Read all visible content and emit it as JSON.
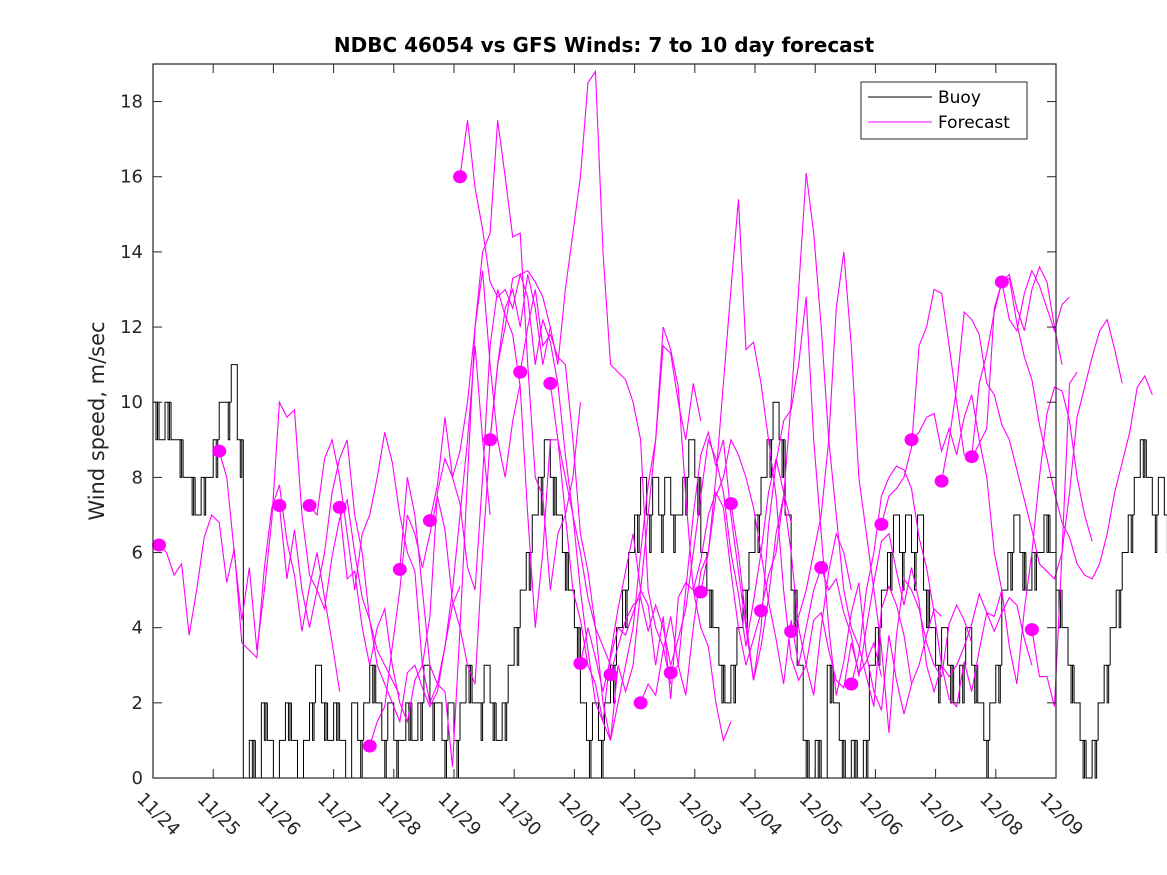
{
  "chart_data": {
    "type": "line",
    "title": "NDBC 46054 vs GFS Winds: 7 to 10 day forecast",
    "xlabel": "",
    "ylabel": "Wind speed, m/sec",
    "xlim_days": [
      0,
      15
    ],
    "ylim": [
      0,
      19
    ],
    "x_ticks": [
      "11/24",
      "11/25",
      "11/26",
      "11/27",
      "11/28",
      "11/29",
      "11/30",
      "12/01",
      "12/02",
      "12/03",
      "12/04",
      "12/05",
      "12/06",
      "12/07",
      "12/08",
      "12/09"
    ],
    "y_ticks": [
      0,
      2,
      4,
      6,
      8,
      10,
      12,
      14,
      16,
      18
    ],
    "x_units": "days since 11/24",
    "grid": false,
    "legend": {
      "position": "top-right",
      "entries": [
        {
          "label": "Buoy",
          "color": "#000000"
        },
        {
          "label": "Forecast",
          "color": "#ff00ff"
        }
      ]
    },
    "colors": {
      "buoy": "#000000",
      "forecast": "#ff00ff",
      "axis": "#262626"
    },
    "buoy": {
      "name": "Buoy",
      "step_days": 0.1,
      "values": [
        10,
        9,
        10,
        9,
        9,
        8,
        8,
        7,
        8,
        8,
        9,
        10,
        10,
        11,
        9,
        0,
        1,
        0,
        2,
        1,
        0,
        1,
        2,
        1,
        0,
        1,
        2,
        3,
        2,
        1,
        2,
        1,
        0,
        2,
        1,
        2,
        3,
        2,
        1,
        2,
        1,
        1,
        2,
        1,
        2,
        3,
        2,
        2,
        1,
        2,
        1,
        2,
        3,
        2,
        2,
        3,
        2,
        1,
        2,
        3,
        4,
        5,
        6,
        7,
        8,
        9,
        8,
        7,
        6,
        5,
        4,
        2,
        1,
        2,
        1,
        2,
        3,
        4,
        5,
        6,
        7,
        8,
        7,
        8,
        7,
        8,
        7,
        7,
        8,
        9,
        8,
        6,
        5,
        4,
        3,
        2,
        3,
        4,
        5,
        6,
        7,
        8,
        9,
        10,
        9,
        7,
        5,
        3,
        1,
        0,
        1,
        0,
        3,
        2,
        1,
        0,
        1,
        0,
        1,
        3,
        4,
        5,
        6,
        7,
        6,
        7,
        6,
        7,
        5,
        4,
        3,
        4,
        3,
        2,
        3,
        4,
        3,
        2,
        1,
        2,
        3,
        5,
        6,
        7,
        6,
        5,
        6,
        6,
        7,
        6,
        5,
        4,
        3,
        2,
        1,
        0,
        1,
        2,
        3,
        4,
        5,
        6,
        7,
        8,
        9,
        8,
        7,
        8,
        7,
        8,
        7,
        7,
        5,
        3,
        2,
        1,
        2,
        1,
        0,
        1,
        2,
        3,
        4,
        5,
        6,
        7,
        6,
        5,
        3,
        2,
        3,
        4,
        5,
        6,
        7,
        6,
        5,
        3,
        2,
        3
      ],
      "start_day": 0
    },
    "forecast_start_markers": [
      {
        "day": 0.1,
        "value": 6.2
      },
      {
        "day": 1.1,
        "value": 8.7
      },
      {
        "day": 2.1,
        "value": 7.25
      },
      {
        "day": 2.6,
        "value": 7.25
      },
      {
        "day": 3.1,
        "value": 7.2
      },
      {
        "day": 3.6,
        "value": 0.85
      },
      {
        "day": 4.1,
        "value": 5.55
      },
      {
        "day": 4.6,
        "value": 6.85
      },
      {
        "day": 5.1,
        "value": 16.0
      },
      {
        "day": 5.6,
        "value": 9.0
      },
      {
        "day": 6.1,
        "value": 10.8
      },
      {
        "day": 6.6,
        "value": 10.5
      },
      {
        "day": 7.1,
        "value": 3.05
      },
      {
        "day": 7.6,
        "value": 2.75
      },
      {
        "day": 8.1,
        "value": 2.0
      },
      {
        "day": 8.6,
        "value": 2.8
      },
      {
        "day": 9.1,
        "value": 4.95
      },
      {
        "day": 9.6,
        "value": 7.3
      },
      {
        "day": 10.1,
        "value": 4.45
      },
      {
        "day": 10.6,
        "value": 3.9
      },
      {
        "day": 11.1,
        "value": 5.6
      },
      {
        "day": 11.6,
        "value": 2.5
      },
      {
        "day": 12.1,
        "value": 6.75
      },
      {
        "day": 12.6,
        "value": 9.0
      },
      {
        "day": 13.1,
        "value": 7.9
      },
      {
        "day": 13.6,
        "value": 8.55
      },
      {
        "day": 14.1,
        "value": 13.2
      },
      {
        "day": 14.6,
        "value": 3.95
      }
    ],
    "forecast_step_days": 0.125,
    "forecast_series": [
      {
        "start_day": 0.1,
        "values": [
          6.2,
          6.0,
          5.4,
          5.7,
          3.8,
          5.0,
          6.4,
          7.0,
          6.8,
          5.2,
          6.1,
          3.6,
          3.4,
          3.2,
          5.6,
          7.2,
          7.8,
          6.3,
          5.4,
          3.9,
          5.1,
          6.0,
          4.8,
          3.6,
          2.3
        ]
      },
      {
        "start_day": 1.1,
        "values": [
          8.7,
          8.0,
          6.0,
          4.2,
          5.6,
          3.4,
          5.0,
          6.9,
          10.0,
          9.6,
          9.8,
          7.0,
          5.4,
          5.0,
          4.5,
          5.9,
          6.9,
          7.4,
          6.0,
          4.8,
          4.2,
          3.4,
          3.0,
          2.6,
          2.2
        ]
      },
      {
        "start_day": 2.1,
        "values": [
          7.25,
          5.3,
          6.6,
          5.0,
          4.0,
          5.0,
          6.0,
          7.6,
          8.5,
          9.0,
          7.0,
          6.0,
          4.2,
          3.0,
          2.5,
          2.0,
          1.5,
          2.8,
          3.0,
          2.4,
          1.9,
          2.3,
          3.5,
          4.6,
          5.1
        ]
      },
      {
        "start_day": 2.6,
        "values": [
          7.25,
          7.0,
          8.5,
          9.0,
          8.0,
          6.5,
          5.0,
          6.5,
          7.0,
          8.0,
          9.2,
          8.4,
          7.0,
          6.0,
          5.5,
          3.0,
          2.0,
          2.5,
          3.5,
          5.0,
          7.0,
          9.0,
          11.5,
          9.0,
          7.0
        ]
      },
      {
        "start_day": 3.1,
        "values": [
          7.2,
          5.3,
          5.5,
          4.0,
          3.0,
          4.0,
          4.5,
          3.0,
          2.0,
          1.5,
          2.6,
          3.0,
          4.3,
          7.6,
          8.5,
          8.0,
          8.7,
          10.0,
          12.0,
          13.5,
          11.0,
          9.0,
          8.0,
          9.5,
          10.5
        ]
      },
      {
        "start_day": 3.6,
        "values": [
          0.85,
          1.5,
          1.9,
          3.5,
          5.0,
          7.0,
          6.5,
          5.6,
          6.5,
          7.5,
          6.6,
          4.7,
          4.0,
          3.0,
          2.5,
          6.0,
          9.0,
          11.0,
          12.5,
          13.0,
          12.0,
          13.4,
          12.5,
          11.0,
          12.0
        ]
      },
      {
        "start_day": 4.1,
        "values": [
          5.55,
          8.0,
          7.0,
          5.0,
          3.0,
          2.5,
          2.3,
          0.3,
          4.0,
          8.0,
          12.0,
          14.0,
          14.5,
          17.5,
          16.0,
          14.4,
          14.5,
          11.0,
          8.0,
          7.5,
          5.0,
          6.5,
          7.0,
          8.0,
          10.0
        ]
      },
      {
        "start_day": 4.6,
        "values": [
          6.85,
          7.8,
          9.6,
          8.0,
          7.3,
          5.6,
          5.0,
          8.0,
          11.5,
          13.0,
          12.3,
          11.8,
          10.4,
          7.0,
          4.0,
          6.0,
          9.0,
          9.0,
          8.0,
          7.0,
          6.0,
          4.8,
          4.0,
          3.5,
          3.0
        ]
      },
      {
        "start_day": 5.1,
        "values": [
          16.0,
          17.5,
          15.7,
          14.6,
          13.2,
          12.8,
          13.0,
          12.5,
          13.4,
          12.8,
          11.0,
          12.2,
          11.6,
          10.5,
          8.6,
          7.0,
          5.0,
          3.4,
          2.0,
          1.5,
          3.3,
          4.5,
          5.5,
          6.5,
          5.0
        ]
      },
      {
        "start_day": 5.6,
        "values": [
          9.0,
          11.0,
          12.0,
          13.3,
          13.4,
          13.5,
          13.2,
          12.8,
          12.0,
          11.0,
          13.0,
          14.5,
          16.0,
          18.5,
          18.8,
          14.0,
          11.0,
          10.8,
          10.6,
          10.0,
          9.0,
          5.0,
          4.0,
          3.5,
          2.5
        ]
      },
      {
        "start_day": 6.1,
        "values": [
          10.8,
          12.0,
          13.0,
          11.5,
          11.8,
          11.2,
          11.0,
          9.0,
          6.5,
          5.5,
          4.0,
          2.0,
          1.0,
          2.0,
          3.0,
          4.0,
          6.0,
          7.8,
          9.0,
          11.5,
          11.3,
          10.0,
          9.0,
          10.5,
          9.5
        ]
      },
      {
        "start_day": 6.6,
        "values": [
          10.5,
          9.0,
          7.0,
          5.0,
          4.2,
          3.0,
          2.5,
          1.5,
          1.0,
          3.0,
          2.3,
          3.0,
          5.0,
          7.0,
          9.0,
          12.0,
          11.4,
          10.4,
          7.5,
          5.0,
          4.0,
          3.5,
          2.0,
          1.0,
          1.5
        ]
      },
      {
        "start_day": 7.1,
        "values": [
          3.05,
          4.0,
          3.2,
          2.3,
          3.2,
          4.0,
          3.8,
          4.4,
          5.0,
          4.6,
          3.0,
          4.3,
          2.1,
          4.8,
          5.2,
          5.0,
          5.8,
          7.0,
          7.6,
          7.2,
          5.5,
          4.0,
          3.0,
          3.7,
          4.4
        ]
      },
      {
        "start_day": 7.6,
        "values": [
          2.75,
          3.5,
          4.2,
          4.6,
          4.8,
          3.9,
          4.6,
          4.0,
          3.0,
          3.7,
          4.5,
          6.0,
          7.5,
          9.0,
          8.5,
          7.6,
          6.0,
          4.9,
          3.5,
          4.7,
          6.0,
          7.6,
          8.5,
          7.6,
          6.8
        ]
      },
      {
        "start_day": 8.1,
        "values": [
          2.0,
          2.5,
          2.2,
          3.4,
          4.3,
          3.0,
          2.2,
          4.0,
          5.5,
          6.0,
          7.5,
          8.0,
          9.0,
          8.6,
          8.0,
          7.2,
          6.0,
          4.7,
          3.7,
          2.5,
          4.2,
          3.0,
          4.0,
          5.0,
          5.6
        ]
      },
      {
        "start_day": 8.6,
        "values": [
          2.8,
          3.0,
          5.0,
          7.0,
          8.6,
          9.2,
          8.3,
          9.0,
          7.0,
          5.5,
          4.0,
          2.6,
          3.5,
          4.8,
          6.5,
          7.5,
          6.0,
          4.0,
          3.0,
          2.2,
          4.0,
          5.5,
          6.5,
          6.0,
          5.0
        ]
      },
      {
        "start_day": 9.1,
        "values": [
          4.95,
          6.0,
          8.0,
          10.5,
          13.0,
          15.4,
          11.4,
          11.6,
          10.5,
          9.0,
          7.5,
          5.0,
          3.2,
          2.6,
          3.0,
          4.2,
          4.4,
          3.4,
          2.6,
          2.4,
          3.6,
          2.8,
          3.1,
          3.6,
          2.7
        ]
      },
      {
        "start_day": 9.6,
        "values": [
          7.3,
          6.0,
          4.2,
          2.6,
          4.0,
          6.7,
          8.4,
          9.5,
          9.8,
          11.0,
          12.8,
          9.0,
          6.5,
          4.0,
          2.2,
          3.1,
          4.4,
          5.2,
          3.3,
          2.3,
          1.8,
          3.8,
          2.6,
          1.7,
          2.5
        ]
      },
      {
        "start_day": 10.1,
        "values": [
          4.45,
          5.4,
          6.0,
          7.5,
          10.0,
          13.0,
          16.1,
          14.5,
          12.0,
          9.0,
          7.0,
          5.0,
          4.0,
          3.5,
          2.7,
          1.9,
          4.5,
          5.1,
          4.6,
          3.8,
          2.5,
          3.0,
          3.8,
          4.5,
          4.3
        ]
      },
      {
        "start_day": 10.6,
        "values": [
          3.9,
          4.3,
          5.0,
          6.0,
          7.0,
          9.0,
          12.5,
          14.0,
          11.5,
          8.0,
          6.5,
          5.0,
          3.5,
          1.2,
          3.8,
          5.3,
          5.0,
          4.5,
          3.6,
          3.0,
          2.7,
          4.1,
          4.6,
          4.2,
          3.6
        ]
      },
      {
        "start_day": 11.1,
        "values": [
          5.6,
          5.0,
          5.3,
          4.4,
          3.8,
          2.7,
          4.0,
          5.2,
          6.3,
          6.5,
          5.5,
          4.6,
          5.6,
          4.7,
          3.0,
          2.3,
          3.0,
          2.7,
          3.0,
          3.5,
          4.1,
          4.9,
          4.4,
          4.3,
          5.0
        ]
      },
      {
        "start_day": 11.6,
        "values": [
          2.5,
          3.3,
          5.0,
          6.0,
          7.5,
          8.0,
          8.3,
          8.2,
          7.7,
          6.4,
          5.6,
          4.4,
          3.0,
          2.1,
          1.9,
          3.1,
          2.3,
          3.4,
          4.4,
          3.9,
          4.4,
          4.8,
          4.6,
          3.7,
          3.0
        ]
      },
      {
        "start_day": 12.1,
        "values": [
          6.75,
          7.5,
          7.7,
          8.0,
          8.8,
          11.5,
          12.0,
          13.0,
          12.9,
          11.5,
          10.0,
          8.6,
          8.5,
          8.9,
          9.3,
          12.5,
          13.2,
          13.4,
          12.5,
          11.9,
          13.0,
          13.6,
          13.2,
          12.0,
          11.0
        ]
      },
      {
        "start_day": 12.6,
        "values": [
          9.0,
          9.2,
          9.6,
          9.7,
          8.7,
          9.3,
          8.6,
          9.6,
          10.2,
          9.0,
          8.0,
          6.0,
          5.0,
          3.5,
          2.5,
          4.5,
          6.0,
          8.0,
          9.7,
          10.4,
          10.3,
          9.5,
          8.0,
          7.0,
          6.3
        ]
      },
      {
        "start_day": 13.1,
        "values": [
          7.9,
          9.0,
          10.4,
          12.4,
          12.2,
          11.8,
          10.5,
          10.2,
          9.4,
          9.0,
          8.2,
          7.4,
          6.6,
          5.7,
          5.5,
          5.3,
          6.0,
          7.6,
          9.6,
          10.4,
          11.2,
          11.9,
          12.2,
          11.4,
          10.5
        ]
      },
      {
        "start_day": 13.6,
        "values": [
          8.55,
          10.5,
          11.3,
          12.4,
          13.2,
          13.3,
          12.1,
          11.2,
          10.6,
          9.4,
          8.5,
          7.6,
          6.8,
          6.4,
          5.7,
          5.4,
          5.3,
          5.7,
          6.5,
          7.6,
          8.4,
          9.2,
          10.4,
          10.7,
          10.2
        ]
      },
      {
        "start_day": 14.1,
        "values": [
          13.2,
          12.2,
          11.9,
          12.9,
          13.5,
          13.1,
          12.5,
          11.9,
          12.6,
          12.8
        ]
      },
      {
        "start_day": 14.6,
        "values": [
          3.95,
          2.7,
          2.7,
          1.9,
          6.0,
          10.5,
          10.8
        ]
      }
    ]
  }
}
